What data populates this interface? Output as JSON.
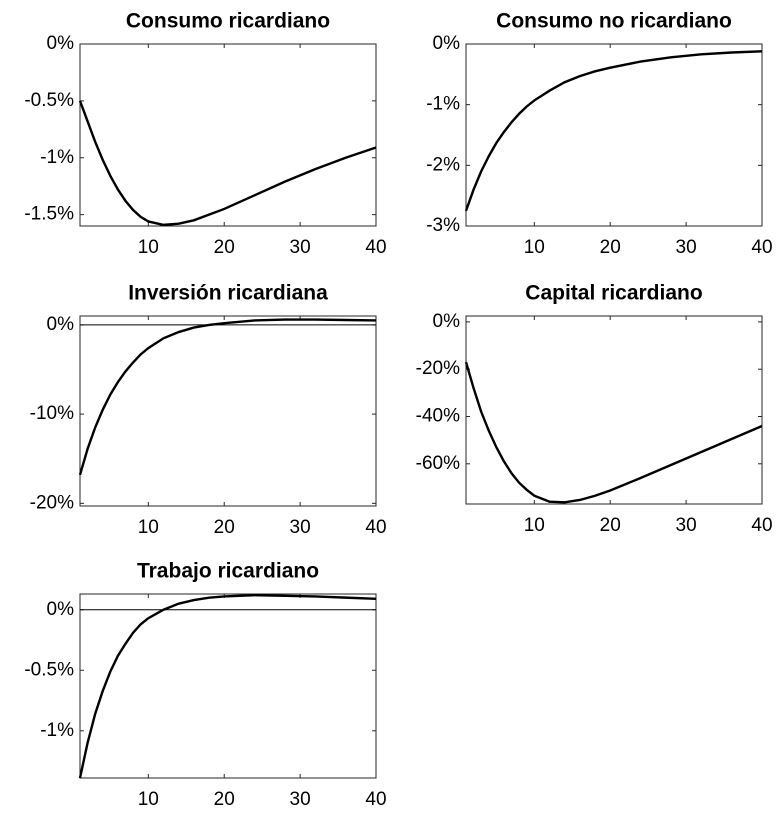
{
  "chart_data": [
    {
      "type": "line",
      "title": "Consumo ricardiano",
      "x": [
        1,
        2,
        3,
        4,
        5,
        6,
        7,
        8,
        9,
        10,
        12,
        14,
        16,
        18,
        20,
        24,
        28,
        32,
        36,
        40
      ],
      "series": [
        {
          "name": null,
          "color": "#000000",
          "values": [
            -0.5,
            -0.68,
            -0.86,
            -1.02,
            -1.16,
            -1.28,
            -1.38,
            -1.46,
            -1.52,
            -1.56,
            -1.59,
            -1.58,
            -1.55,
            -1.5,
            -1.45,
            -1.33,
            -1.21,
            -1.1,
            -1.0,
            -0.91
          ]
        }
      ],
      "xlim": [
        1,
        40
      ],
      "xticks": [
        10,
        20,
        30,
        40
      ],
      "ylim": [
        -1.6,
        0
      ],
      "yticks": [
        {
          "value": -1.5,
          "label": "-1.5%"
        },
        {
          "value": -1,
          "label": "-1%"
        },
        {
          "value": -0.5,
          "label": "-0.5%"
        },
        {
          "value": 0,
          "label": "0%"
        }
      ],
      "zero_line": false
    },
    {
      "type": "line",
      "title": "Consumo no ricardiano",
      "x": [
        1,
        2,
        3,
        4,
        5,
        6,
        7,
        8,
        9,
        10,
        12,
        14,
        16,
        18,
        20,
        24,
        28,
        32,
        36,
        40
      ],
      "series": [
        {
          "name": null,
          "color": "#000000",
          "values": [
            -2.75,
            -2.4,
            -2.1,
            -1.85,
            -1.63,
            -1.45,
            -1.29,
            -1.15,
            -1.03,
            -0.93,
            -0.77,
            -0.63,
            -0.53,
            -0.45,
            -0.39,
            -0.29,
            -0.22,
            -0.17,
            -0.14,
            -0.12
          ]
        }
      ],
      "xlim": [
        1,
        40
      ],
      "xticks": [
        10,
        20,
        30,
        40
      ],
      "ylim": [
        -3,
        0
      ],
      "yticks": [
        {
          "value": -3,
          "label": "-3%"
        },
        {
          "value": -2,
          "label": "-2%"
        },
        {
          "value": -1,
          "label": "-1%"
        },
        {
          "value": 0,
          "label": "0%"
        }
      ],
      "zero_line": false
    },
    {
      "type": "line",
      "title": "Inversión ricardiana",
      "x": [
        1,
        2,
        3,
        4,
        5,
        6,
        7,
        8,
        9,
        10,
        12,
        14,
        16,
        18,
        20,
        24,
        28,
        32,
        36,
        40
      ],
      "series": [
        {
          "name": null,
          "color": "#000000",
          "values": [
            -16.8,
            -13.9,
            -11.5,
            -9.5,
            -7.8,
            -6.4,
            -5.2,
            -4.2,
            -3.3,
            -2.6,
            -1.5,
            -0.8,
            -0.3,
            0.0,
            0.2,
            0.5,
            0.6,
            0.6,
            0.55,
            0.5
          ]
        }
      ],
      "xlim": [
        1,
        40
      ],
      "xticks": [
        10,
        20,
        30,
        40
      ],
      "ylim": [
        -20.3,
        1
      ],
      "yticks": [
        {
          "value": -20,
          "label": "-20%"
        },
        {
          "value": -10,
          "label": "-10%"
        },
        {
          "value": 0,
          "label": "0%"
        }
      ],
      "zero_line": true
    },
    {
      "type": "line",
      "title": "Capital ricardiano",
      "x": [
        1,
        2,
        3,
        4,
        5,
        6,
        7,
        8,
        9,
        10,
        12,
        14,
        16,
        18,
        20,
        24,
        28,
        32,
        36,
        40
      ],
      "series": [
        {
          "name": null,
          "color": "#000000",
          "values": [
            -17,
            -28,
            -38,
            -46,
            -53,
            -59,
            -64,
            -68,
            -71,
            -73.5,
            -76,
            -76.3,
            -75.3,
            -73.5,
            -71.3,
            -66,
            -60.5,
            -55,
            -49.5,
            -44
          ]
        }
      ],
      "xlim": [
        1,
        40
      ],
      "xticks": [
        10,
        20,
        30,
        40
      ],
      "ylim": [
        -77,
        2.5
      ],
      "yticks": [
        {
          "value": -60,
          "label": "-60%"
        },
        {
          "value": -40,
          "label": "-40%"
        },
        {
          "value": -20,
          "label": "-20%"
        },
        {
          "value": 0,
          "label": "0%"
        }
      ],
      "zero_line": false
    },
    {
      "type": "line",
      "title": "Trabajo ricardiano",
      "x": [
        1,
        2,
        3,
        4,
        5,
        6,
        7,
        8,
        9,
        10,
        12,
        14,
        16,
        18,
        20,
        24,
        28,
        32,
        36,
        40
      ],
      "series": [
        {
          "name": null,
          "color": "#000000",
          "values": [
            -1.39,
            -1.1,
            -0.86,
            -0.67,
            -0.51,
            -0.38,
            -0.28,
            -0.19,
            -0.12,
            -0.07,
            0.0,
            0.05,
            0.08,
            0.1,
            0.11,
            0.12,
            0.115,
            0.11,
            0.1,
            0.09
          ]
        }
      ],
      "xlim": [
        1,
        40
      ],
      "xticks": [
        10,
        20,
        30,
        40
      ],
      "ylim": [
        -1.39,
        0.13
      ],
      "yticks": [
        {
          "value": -1,
          "label": "-1%"
        },
        {
          "value": -0.5,
          "label": "-0.5%"
        },
        {
          "value": 0,
          "label": "0%"
        }
      ],
      "zero_line": true
    }
  ]
}
